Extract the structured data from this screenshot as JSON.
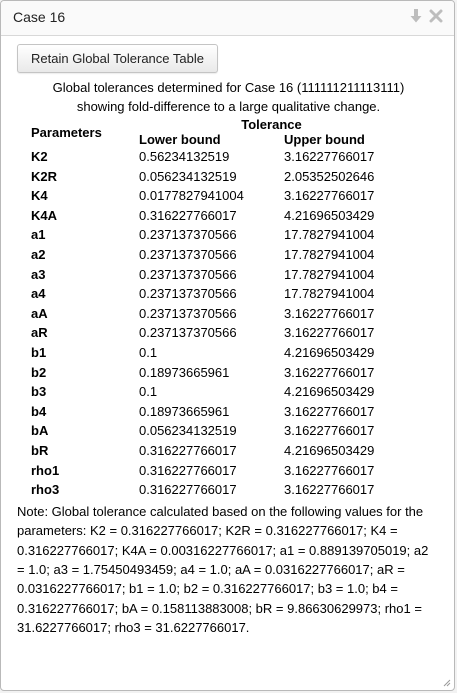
{
  "window": {
    "title": "Case 16",
    "icons": {
      "minimize": "arrow-down-icon",
      "close": "close-icon"
    }
  },
  "toolbar": {
    "retain_label": "Retain Global Tolerance Table"
  },
  "caption": "Global tolerances determined for Case 16 (111111211113111) showing fold-difference to a large qualitative change.",
  "table": {
    "header_parameters": "Parameters",
    "header_tolerance": "Tolerance",
    "header_lower": "Lower bound",
    "header_upper": "Upper bound",
    "rows": [
      {
        "param": "K2",
        "lower": "0.56234132519",
        "upper": "3.16227766017"
      },
      {
        "param": "K2R",
        "lower": "0.056234132519",
        "upper": "2.05352502646"
      },
      {
        "param": "K4",
        "lower": "0.0177827941004",
        "upper": "3.16227766017"
      },
      {
        "param": "K4A",
        "lower": "0.316227766017",
        "upper": "4.21696503429"
      },
      {
        "param": "a1",
        "lower": "0.237137370566",
        "upper": "17.7827941004"
      },
      {
        "param": "a2",
        "lower": "0.237137370566",
        "upper": "17.7827941004"
      },
      {
        "param": "a3",
        "lower": "0.237137370566",
        "upper": "17.7827941004"
      },
      {
        "param": "a4",
        "lower": "0.237137370566",
        "upper": "17.7827941004"
      },
      {
        "param": "aA",
        "lower": "0.237137370566",
        "upper": "3.16227766017"
      },
      {
        "param": "aR",
        "lower": "0.237137370566",
        "upper": "3.16227766017"
      },
      {
        "param": "b1",
        "lower": "0.1",
        "upper": "4.21696503429"
      },
      {
        "param": "b2",
        "lower": "0.18973665961",
        "upper": "3.16227766017"
      },
      {
        "param": "b3",
        "lower": "0.1",
        "upper": "4.21696503429"
      },
      {
        "param": "b4",
        "lower": "0.18973665961",
        "upper": "3.16227766017"
      },
      {
        "param": "bA",
        "lower": "0.056234132519",
        "upper": "3.16227766017"
      },
      {
        "param": "bR",
        "lower": "0.316227766017",
        "upper": "4.21696503429"
      },
      {
        "param": "rho1",
        "lower": "0.316227766017",
        "upper": "3.16227766017"
      },
      {
        "param": "rho3",
        "lower": "0.316227766017",
        "upper": "3.16227766017"
      }
    ]
  },
  "note": "Note: Global tolerance calculated based on the following values for the parameters: K2 = 0.316227766017; K2R = 0.316227766017; K4 = 0.316227766017; K4A = 0.00316227766017; a1 = 0.889139705019; a2 = 1.0; a3 = 1.75450493459; a4 = 1.0; aA = 0.0316227766017; aR = 0.0316227766017; b1 = 1.0; b2 = 0.316227766017; b3 = 1.0; b4 = 0.316227766017; bA = 0.158113883008; bR = 9.86630629973; rho1 = 31.6227766017; rho3 = 31.6227766017."
}
